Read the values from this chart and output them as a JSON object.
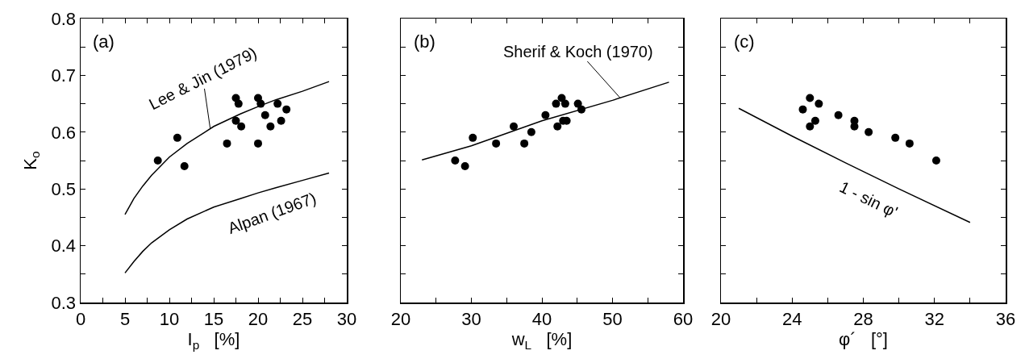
{
  "chart_data": [
    {
      "type": "scatter",
      "xlabel": "I$_{p}$   [%]",
      "ylabel": "K$_{o}$",
      "marker": "circle",
      "xlim": [
        0,
        30
      ],
      "xticks": [
        0,
        {
          "value": 2.5,
          "label": null
        },
        5,
        {
          "value": 7.5,
          "label": null
        },
        10,
        {
          "value": 12.5,
          "label": null
        },
        15,
        {
          "value": 17.5,
          "label": null
        },
        20,
        {
          "value": 22.5,
          "label": null
        },
        25,
        {
          "value": 27.5,
          "label": null
        },
        30
      ],
      "ylim": [
        0.3,
        0.8
      ],
      "yticks": [
        0.3,
        {
          "value": 0.35,
          "label": null
        },
        0.4,
        {
          "value": 0.45,
          "label": null
        },
        0.5,
        {
          "value": 0.55,
          "label": null
        },
        0.6,
        {
          "value": 0.65,
          "label": null
        },
        0.7,
        {
          "value": 0.75,
          "label": null
        },
        0.8
      ],
      "series": [
        {
          "color": "#000000",
          "x": [
            8.7,
            10.9,
            11.7,
            16.5,
            17.5,
            17.8,
            17.5,
            18.1,
            20.0,
            20.3,
            20.0,
            20.8,
            21.4,
            22.2,
            22.6,
            23.2
          ],
          "values": [
            0.55,
            0.59,
            0.54,
            0.58,
            0.66,
            0.65,
            0.62,
            0.61,
            0.66,
            0.65,
            0.58,
            0.63,
            0.61,
            0.65,
            0.62,
            0.64
          ]
        },
        {
          "type": "line",
          "marker": "none",
          "color": "#000000",
          "line_style": "solid",
          "x": [
            5,
            6,
            7,
            8,
            10,
            12,
            15,
            18,
            20,
            22,
            25,
            28
          ],
          "values": [
            0.455,
            0.483,
            0.505,
            0.524,
            0.556,
            0.58,
            0.61,
            0.632,
            0.645,
            0.657,
            0.672,
            0.689
          ]
        },
        {
          "type": "line",
          "marker": "none",
          "color": "#000000",
          "line_style": "solid",
          "x": [
            5,
            6,
            7,
            8,
            10,
            12,
            15,
            18,
            20,
            22,
            25,
            28
          ],
          "values": [
            0.352,
            0.372,
            0.39,
            0.405,
            0.428,
            0.447,
            0.468,
            0.483,
            0.493,
            0.502,
            0.515,
            0.528
          ]
        }
      ],
      "annotations": [
        "(a)",
        {
          "text": "Lee & Jin (1979)",
          "x": 14.6,
          "y": 0.607
        },
        {
          "text": "Alpan (1967)",
          "x": 21.6,
          "y": 0.5
        }
      ]
    },
    {
      "type": "scatter",
      "xlabel": "w$_{L}$   [%]",
      "marker": "circle",
      "tick_labels": "x",
      "xlim": [
        20,
        60
      ],
      "xticks": [
        20,
        {
          "value": 25,
          "label": null
        },
        30,
        {
          "value": 35,
          "label": null
        },
        40,
        {
          "value": 45,
          "label": null
        },
        50,
        {
          "value": 55,
          "label": null
        },
        60
      ],
      "ylim": [
        0.3,
        0.8
      ],
      "yticks": [
        0.3,
        {
          "value": 0.35,
          "label": null
        },
        0.4,
        {
          "value": 0.45,
          "label": null
        },
        0.5,
        {
          "value": 0.55,
          "label": null
        },
        0.6,
        {
          "value": 0.65,
          "label": null
        },
        0.7,
        {
          "value": 0.75,
          "label": null
        },
        0.8
      ],
      "series": [
        {
          "color": "#000000",
          "x": [
            27.7,
            29.1,
            30.2,
            33.5,
            36.0,
            37.5,
            38.5,
            40.5,
            42.0,
            42.2,
            42.8,
            43.3,
            43.0,
            43.5,
            45.1,
            45.6
          ],
          "values": [
            0.55,
            0.54,
            0.59,
            0.58,
            0.61,
            0.58,
            0.6,
            0.63,
            0.65,
            0.61,
            0.66,
            0.65,
            0.62,
            0.62,
            0.65,
            0.64
          ]
        },
        {
          "type": "line",
          "marker": "none",
          "color": "#000000",
          "line_style": "solid",
          "x": [
            23,
            30,
            40,
            50,
            58
          ],
          "values": [
            0.551,
            0.576,
            0.62,
            0.656,
            0.688
          ]
        }
      ],
      "annotations": [
        "(b)",
        {
          "text": "Sherif & Koch (1970)",
          "x": 51.1,
          "y": 0.66
        }
      ]
    },
    {
      "type": "scatter",
      "xlabel": "φ´   [°]",
      "marker": "circle",
      "tick_labels": "x",
      "xlim": [
        20,
        36
      ],
      "xticks": [
        20,
        {
          "value": 22,
          "label": null
        },
        24,
        {
          "value": 26,
          "label": null
        },
        28,
        {
          "value": 30,
          "label": null
        },
        32,
        {
          "value": 34,
          "label": null
        },
        36
      ],
      "ylim": [
        0.3,
        0.8
      ],
      "yticks": [
        0.3,
        {
          "value": 0.35,
          "label": null
        },
        0.4,
        {
          "value": 0.45,
          "label": null
        },
        0.5,
        {
          "value": 0.55,
          "label": null
        },
        0.6,
        {
          "value": 0.65,
          "label": null
        },
        0.7,
        {
          "value": 0.75,
          "label": null
        },
        0.8
      ],
      "series": [
        {
          "color": "#000000",
          "x": [
            25.0,
            24.6,
            25.5,
            25.3,
            25.0,
            26.6,
            27.5,
            27.5,
            28.3,
            29.8,
            30.6,
            32.1
          ],
          "values": [
            0.66,
            0.64,
            0.65,
            0.62,
            0.61,
            0.63,
            0.62,
            0.61,
            0.6,
            0.59,
            0.58,
            0.55
          ]
        },
        {
          "type": "line",
          "marker": "none",
          "color": "#000000",
          "line_style": "solid",
          "x": [
            21,
            24,
            27,
            30,
            34
          ],
          "values": [
            0.642,
            0.593,
            0.546,
            0.5,
            0.441
          ]
        }
      ],
      "annotations": [
        "(c)",
        {
          "text": "1 - sin φ'",
          "x": 28.3,
          "y": 0.525
        }
      ]
    }
  ]
}
